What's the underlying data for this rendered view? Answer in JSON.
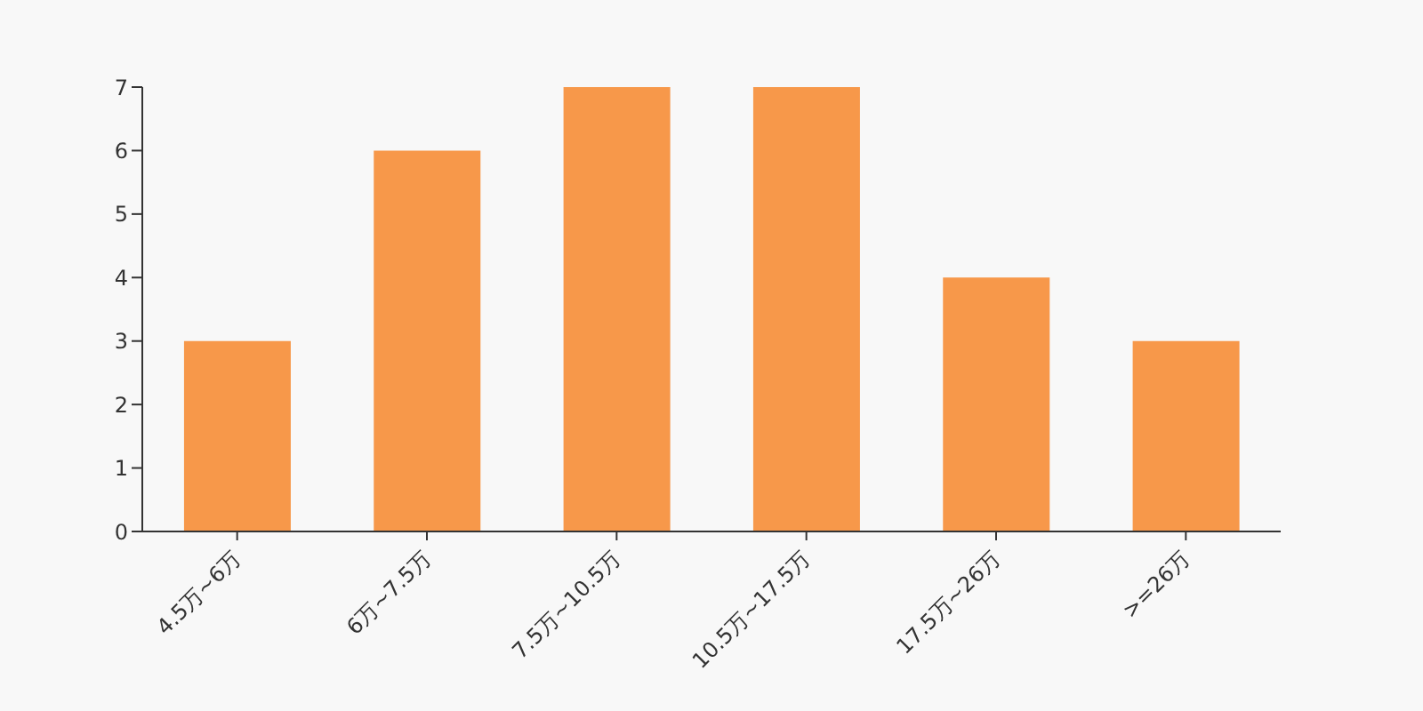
{
  "chart_data": {
    "type": "bar",
    "categories": [
      "4.5万~6万",
      "6万~7.5万",
      "7.5万~10.5万",
      "10.5万~17.5万",
      "17.5万~26万",
      ">=26万"
    ],
    "values": [
      3,
      6,
      7,
      7,
      4,
      3
    ],
    "color": "#f7984a",
    "ylim": [
      0,
      7
    ],
    "yticks": [
      0,
      1,
      2,
      3,
      4,
      5,
      6,
      7
    ],
    "grid": false,
    "legend": false
  }
}
